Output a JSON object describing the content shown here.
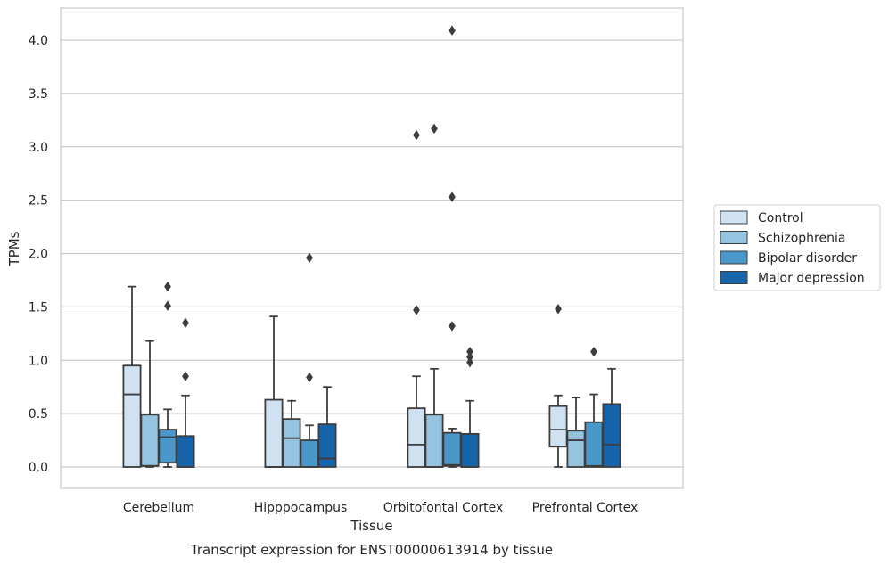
{
  "chart_data": {
    "type": "box",
    "title": "",
    "caption": "Transcript expression for ENST00000613914 by tissue",
    "xlabel": "Tissue",
    "ylabel": "TPMs",
    "ylim": [
      -0.2,
      4.3
    ],
    "yticks": [
      "0.0",
      "0.5",
      "1.0",
      "1.5",
      "2.0",
      "2.5",
      "3.0",
      "3.5",
      "4.0"
    ],
    "grid": "horizontal",
    "legend_position": "right",
    "categories": [
      "Cerebellum",
      "Hipppocampus",
      "Orbitofontal Cortex",
      "Prefrontal Cortex"
    ],
    "series": [
      {
        "name": "Control",
        "color": "#d0e1f2",
        "boxes": [
          {
            "whisker_low": 0.0,
            "q1": 0.0,
            "median": 0.68,
            "q3": 0.95,
            "whisker_high": 1.69,
            "outliers": []
          },
          {
            "whisker_low": 0.0,
            "q1": 0.0,
            "median": 0.0,
            "q3": 0.63,
            "whisker_high": 1.41,
            "outliers": []
          },
          {
            "whisker_low": 0.0,
            "q1": 0.0,
            "median": 0.21,
            "q3": 0.55,
            "whisker_high": 0.85,
            "outliers": [
              1.47,
              3.11
            ]
          },
          {
            "whisker_low": 0.0,
            "q1": 0.19,
            "median": 0.35,
            "q3": 0.57,
            "whisker_high": 0.67,
            "outliers": [
              1.48
            ]
          }
        ]
      },
      {
        "name": "Schizophrenia",
        "color": "#94c4df",
        "boxes": [
          {
            "whisker_low": 0.0,
            "q1": 0.01,
            "median": 0.01,
            "q3": 0.49,
            "whisker_high": 1.18,
            "outliers": []
          },
          {
            "whisker_low": 0.0,
            "q1": 0.0,
            "median": 0.27,
            "q3": 0.45,
            "whisker_high": 0.62,
            "outliers": []
          },
          {
            "whisker_low": 0.0,
            "q1": 0.0,
            "median": 0.0,
            "q3": 0.49,
            "whisker_high": 0.92,
            "outliers": [
              3.17
            ]
          },
          {
            "whisker_low": 0.0,
            "q1": 0.0,
            "median": 0.25,
            "q3": 0.34,
            "whisker_high": 0.65,
            "outliers": []
          }
        ]
      },
      {
        "name": "Bipolar disorder",
        "color": "#4a98c9",
        "boxes": [
          {
            "whisker_low": 0.0,
            "q1": 0.04,
            "median": 0.28,
            "q3": 0.35,
            "whisker_high": 0.54,
            "outliers": [
              1.51,
              1.69
            ]
          },
          {
            "whisker_low": 0.0,
            "q1": 0.0,
            "median": 0.0,
            "q3": 0.25,
            "whisker_high": 0.39,
            "outliers": [
              0.84,
              1.96
            ]
          },
          {
            "whisker_low": 0.0,
            "q1": 0.01,
            "median": 0.02,
            "q3": 0.32,
            "whisker_high": 0.36,
            "outliers": [
              1.32,
              2.53,
              4.09
            ]
          },
          {
            "whisker_low": 0.0,
            "q1": 0.0,
            "median": 0.01,
            "q3": 0.42,
            "whisker_high": 0.68,
            "outliers": [
              1.08
            ]
          }
        ]
      },
      {
        "name": "Major depression",
        "color": "#1764ab",
        "boxes": [
          {
            "whisker_low": 0.0,
            "q1": 0.0,
            "median": 0.0,
            "q3": 0.29,
            "whisker_high": 0.67,
            "outliers": [
              0.85,
              1.35
            ]
          },
          {
            "whisker_low": 0.0,
            "q1": 0.0,
            "median": 0.08,
            "q3": 0.4,
            "whisker_high": 0.75,
            "outliers": []
          },
          {
            "whisker_low": 0.0,
            "q1": 0.0,
            "median": 0.0,
            "q3": 0.31,
            "whisker_high": 0.62,
            "outliers": [
              0.98,
              1.03,
              1.08
            ]
          },
          {
            "whisker_low": 0.0,
            "q1": 0.0,
            "median": 0.21,
            "q3": 0.59,
            "whisker_high": 0.92,
            "outliers": []
          }
        ]
      }
    ]
  }
}
